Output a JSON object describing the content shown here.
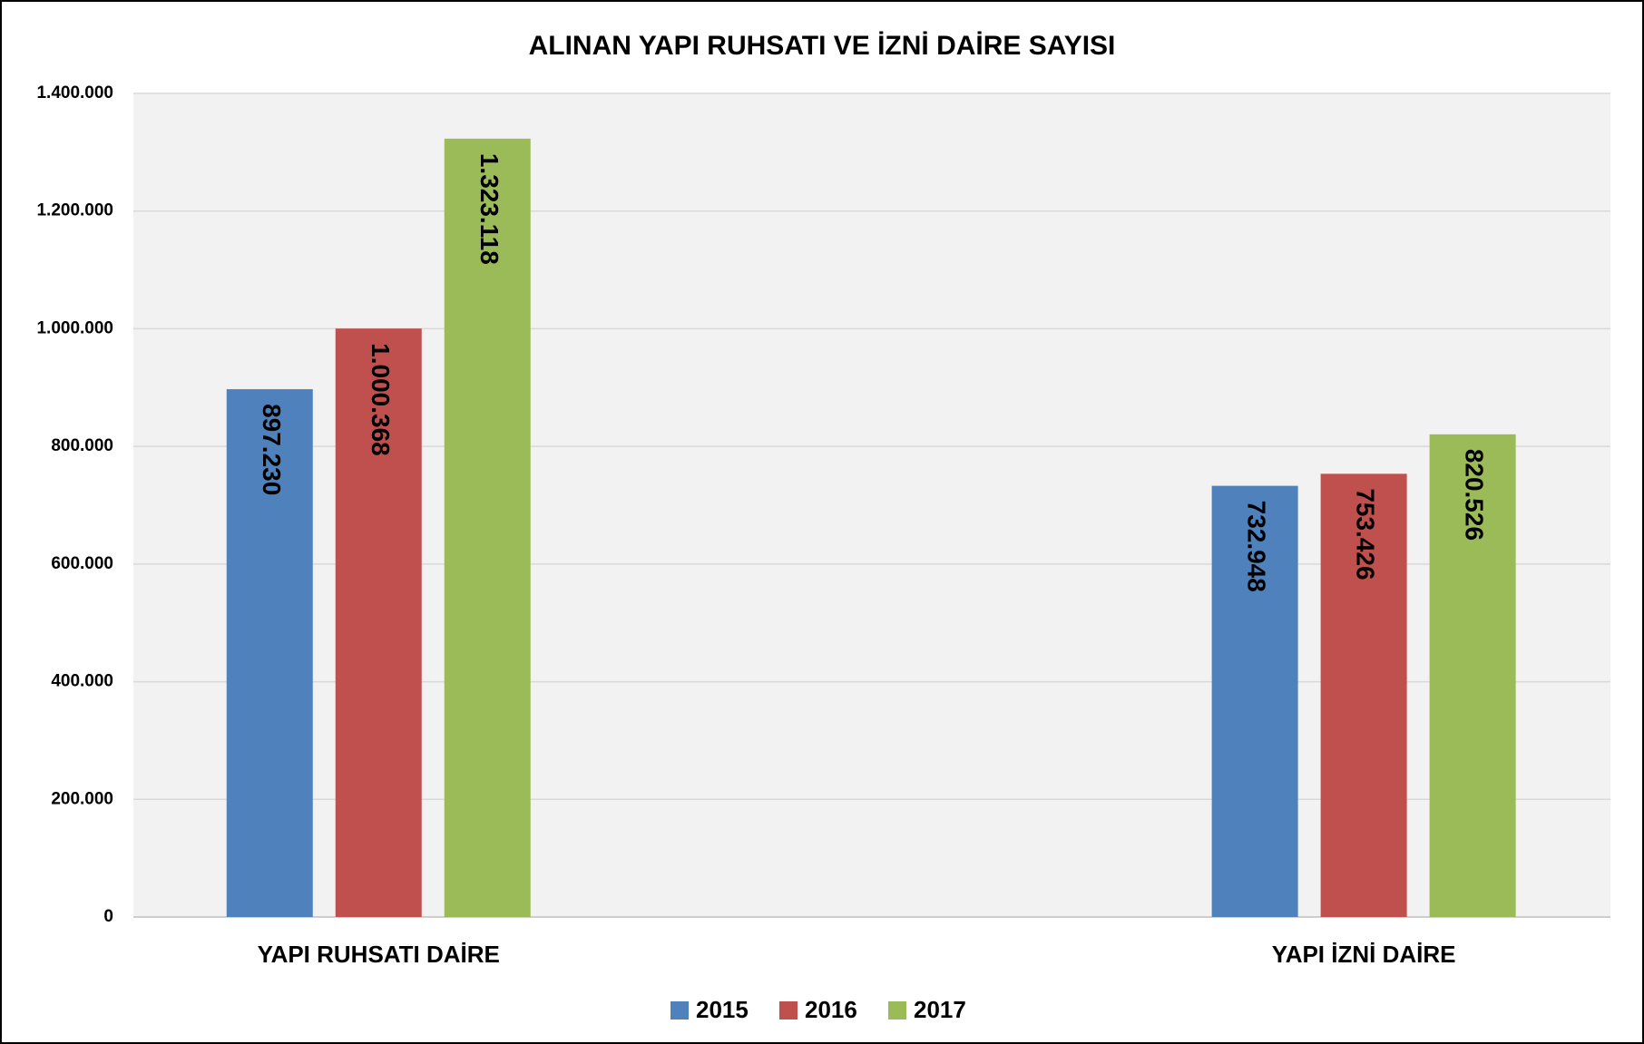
{
  "chart_data": {
    "type": "bar",
    "title": "ALINAN YAPI RUHSATI VE İZNİ DAİRE SAYISI",
    "categories": [
      "YAPI RUHSATI DAİRE",
      "YAPI İZNİ DAİRE"
    ],
    "series": [
      {
        "name": "2015",
        "color": "#4f81bd",
        "values": [
          897230,
          732948
        ],
        "value_labels": [
          "897.230",
          "732.948"
        ]
      },
      {
        "name": "2016",
        "color": "#c0504d",
        "values": [
          1000368,
          753426
        ],
        "value_labels": [
          "1.000.368",
          "753.426"
        ]
      },
      {
        "name": "2017",
        "color": "#9bbb59",
        "values": [
          1323118,
          820526
        ],
        "value_labels": [
          "1.323.118",
          "820.526"
        ]
      }
    ],
    "ylim": [
      0,
      1400000
    ],
    "yticks": [
      0,
      {
        "value": 200000,
        "label": "200.000"
      },
      {
        "value": 400000,
        "label": "400.000"
      },
      {
        "value": 600000,
        "label": "600.000"
      },
      {
        "value": 800000,
        "label": "800.000"
      },
      {
        "value": 1000000,
        "label": "1.000.000"
      },
      {
        "value": 1200000,
        "label": "1.200.000"
      },
      {
        "value": 1400000,
        "label": "1.400.000"
      }
    ],
    "grid": true,
    "legend": "bottom"
  }
}
